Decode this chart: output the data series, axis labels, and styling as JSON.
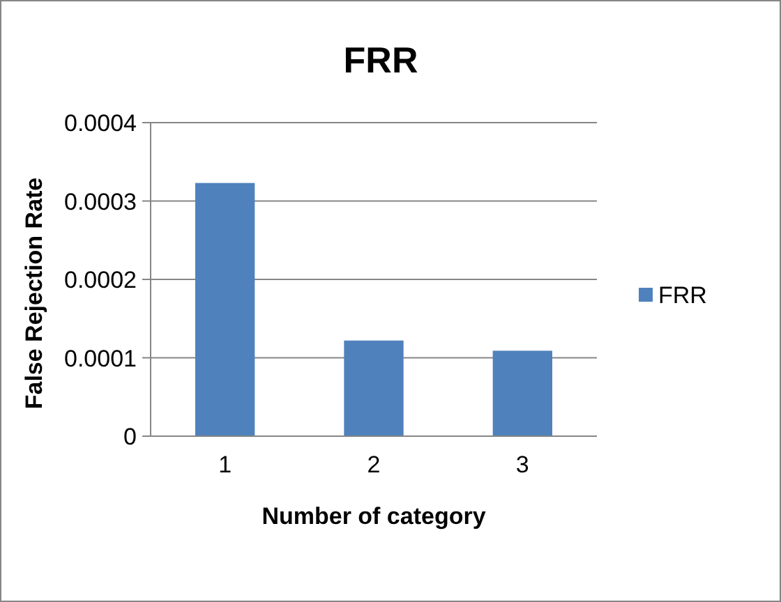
{
  "chart_data": {
    "type": "bar",
    "title": "FRR",
    "xlabel": "Number of category",
    "ylabel": "False Rejection Rate",
    "categories": [
      "1",
      "2",
      "3"
    ],
    "series": [
      {
        "name": "FRR",
        "color": "#4f81bd",
        "values": [
          0.000323,
          0.000122,
          0.000109
        ]
      }
    ],
    "ylim": [
      0,
      0.0004
    ],
    "yticks": [
      0,
      0.0001,
      0.0002,
      0.0003,
      0.0004
    ],
    "grid": "y",
    "legend": "right"
  }
}
